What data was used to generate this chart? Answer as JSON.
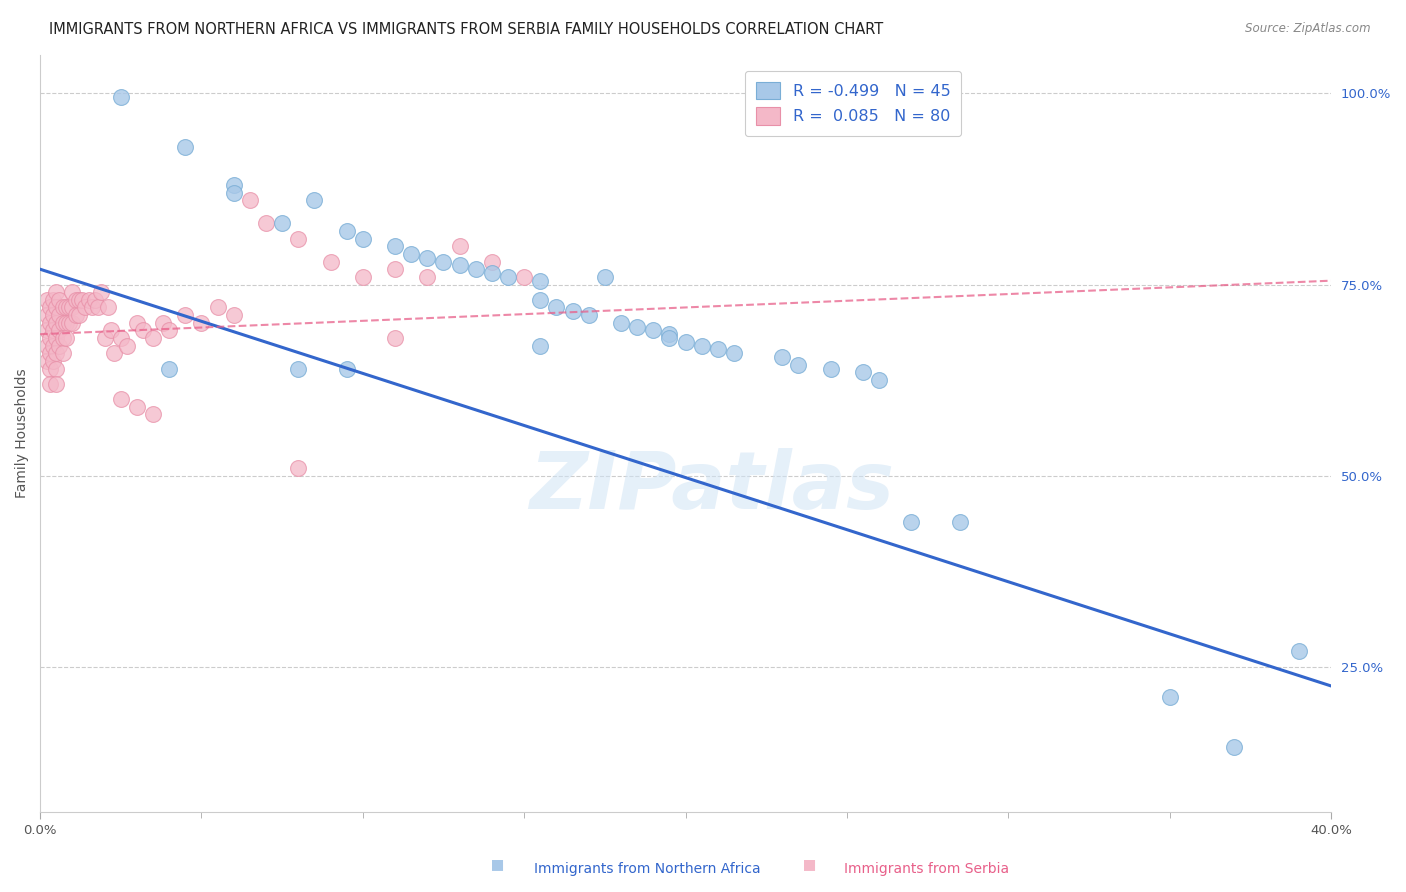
{
  "title": "IMMIGRANTS FROM NORTHERN AFRICA VS IMMIGRANTS FROM SERBIA FAMILY HOUSEHOLDS CORRELATION CHART",
  "source": "Source: ZipAtlas.com",
  "ylabel": "Family Households",
  "legend_blue_label": "Immigrants from Northern Africa",
  "legend_pink_label": "Immigrants from Serbia",
  "legend_blue_R": "R = -0.499",
  "legend_blue_N": "N = 45",
  "legend_pink_R": "R =  0.085",
  "legend_pink_N": "N = 80",
  "xlim": [
    0.0,
    0.4
  ],
  "ylim": [
    0.06,
    1.05
  ],
  "xtick_left_label": "0.0%",
  "xtick_right_label": "40.0%",
  "xtick_left": 0.0,
  "xtick_right": 0.4,
  "xticks_minor": [
    0.05,
    0.1,
    0.15,
    0.2,
    0.25,
    0.3,
    0.35
  ],
  "yticklabels_right": [
    "100.0%",
    "75.0%",
    "50.0%",
    "25.0%"
  ],
  "yticks_right": [
    1.0,
    0.75,
    0.5,
    0.25
  ],
  "blue_color": "#a8c8e8",
  "pink_color": "#f4b8c8",
  "blue_scatter_edge": "#7aaed6",
  "pink_scatter_edge": "#e890a8",
  "blue_line_color": "#3366cc",
  "pink_line_color": "#e8608a",
  "background_color": "#ffffff",
  "grid_color": "#cccccc",
  "blue_scatter_x": [
    0.025,
    0.045,
    0.06,
    0.06,
    0.075,
    0.085,
    0.095,
    0.1,
    0.11,
    0.115,
    0.12,
    0.125,
    0.13,
    0.135,
    0.14,
    0.145,
    0.155,
    0.155,
    0.16,
    0.165,
    0.17,
    0.18,
    0.185,
    0.19,
    0.195,
    0.195,
    0.2,
    0.205,
    0.21,
    0.215,
    0.23,
    0.235,
    0.245,
    0.255,
    0.26,
    0.27,
    0.285,
    0.175,
    0.155,
    0.095,
    0.08,
    0.04,
    0.37,
    0.35,
    0.39
  ],
  "blue_scatter_y": [
    0.995,
    0.93,
    0.88,
    0.87,
    0.83,
    0.86,
    0.82,
    0.81,
    0.8,
    0.79,
    0.785,
    0.78,
    0.775,
    0.77,
    0.765,
    0.76,
    0.755,
    0.73,
    0.72,
    0.715,
    0.71,
    0.7,
    0.695,
    0.69,
    0.685,
    0.68,
    0.675,
    0.67,
    0.665,
    0.66,
    0.655,
    0.645,
    0.64,
    0.635,
    0.625,
    0.44,
    0.44,
    0.76,
    0.67,
    0.64,
    0.64,
    0.64,
    0.145,
    0.21,
    0.27
  ],
  "pink_scatter_x": [
    0.002,
    0.002,
    0.002,
    0.002,
    0.002,
    0.003,
    0.003,
    0.003,
    0.003,
    0.003,
    0.003,
    0.004,
    0.004,
    0.004,
    0.004,
    0.004,
    0.005,
    0.005,
    0.005,
    0.005,
    0.005,
    0.005,
    0.005,
    0.006,
    0.006,
    0.006,
    0.006,
    0.007,
    0.007,
    0.007,
    0.007,
    0.008,
    0.008,
    0.008,
    0.009,
    0.009,
    0.01,
    0.01,
    0.01,
    0.011,
    0.011,
    0.012,
    0.012,
    0.013,
    0.014,
    0.015,
    0.016,
    0.017,
    0.018,
    0.019,
    0.02,
    0.021,
    0.022,
    0.023,
    0.025,
    0.027,
    0.03,
    0.032,
    0.035,
    0.038,
    0.04,
    0.045,
    0.05,
    0.055,
    0.06,
    0.065,
    0.07,
    0.08,
    0.09,
    0.1,
    0.11,
    0.12,
    0.13,
    0.14,
    0.15,
    0.025,
    0.03,
    0.035,
    0.08,
    0.11
  ],
  "pink_scatter_y": [
    0.73,
    0.71,
    0.69,
    0.67,
    0.65,
    0.72,
    0.7,
    0.68,
    0.66,
    0.64,
    0.62,
    0.73,
    0.71,
    0.69,
    0.67,
    0.65,
    0.74,
    0.72,
    0.7,
    0.68,
    0.66,
    0.64,
    0.62,
    0.73,
    0.71,
    0.69,
    0.67,
    0.72,
    0.7,
    0.68,
    0.66,
    0.72,
    0.7,
    0.68,
    0.72,
    0.7,
    0.74,
    0.72,
    0.7,
    0.73,
    0.71,
    0.73,
    0.71,
    0.73,
    0.72,
    0.73,
    0.72,
    0.73,
    0.72,
    0.74,
    0.68,
    0.72,
    0.69,
    0.66,
    0.68,
    0.67,
    0.7,
    0.69,
    0.68,
    0.7,
    0.69,
    0.71,
    0.7,
    0.72,
    0.71,
    0.86,
    0.83,
    0.81,
    0.78,
    0.76,
    0.77,
    0.76,
    0.8,
    0.78,
    0.76,
    0.6,
    0.59,
    0.58,
    0.51,
    0.68
  ],
  "blue_trendline_x": [
    0.0,
    0.4
  ],
  "blue_trendline_y": [
    0.77,
    0.225
  ],
  "pink_trendline_x": [
    0.0,
    0.4
  ],
  "pink_trendline_y": [
    0.685,
    0.755
  ],
  "watermark": "ZIPatlas",
  "title_fontsize": 10.5,
  "axis_fontsize": 10,
  "tick_fontsize": 9.5,
  "legend_fontsize": 11.5
}
